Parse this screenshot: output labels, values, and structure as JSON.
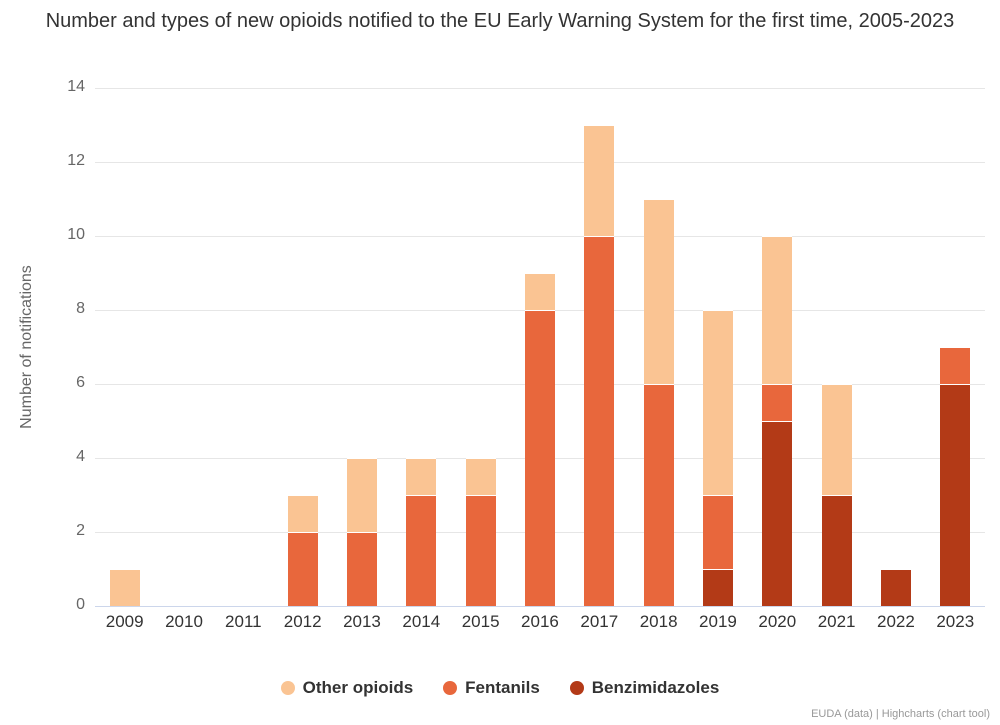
{
  "header": {
    "title": "Number and types of new opioids notified to the EU Early Warning System for the first time, 2005-2023"
  },
  "chart_data": {
    "type": "bar",
    "stacking": "normal",
    "title": "Number and types of new opioids notified to the EU Early Warning System for the first time, 2005-2023",
    "categories": [
      "2009",
      "2010",
      "2011",
      "2012",
      "2013",
      "2014",
      "2015",
      "2016",
      "2017",
      "2018",
      "2019",
      "2020",
      "2021",
      "2022",
      "2023"
    ],
    "series": [
      {
        "name": "Other opioids",
        "color": "#FAC493",
        "values": [
          1,
          0,
          0,
          1,
          2,
          1,
          1,
          1,
          3,
          5,
          5,
          4,
          3,
          0,
          0
        ]
      },
      {
        "name": "Fentanils",
        "color": "#E8673C",
        "values": [
          0,
          0,
          0,
          2,
          2,
          3,
          3,
          8,
          10,
          6,
          2,
          1,
          0,
          0,
          1
        ]
      },
      {
        "name": "Benzimidazoles",
        "color": "#B33A17",
        "values": [
          0,
          0,
          0,
          0,
          0,
          0,
          0,
          0,
          0,
          0,
          1,
          5,
          3,
          1,
          6
        ]
      }
    ],
    "stack_order_bottom_to_top": [
      "Benzimidazoles",
      "Fentanils",
      "Other opioids"
    ],
    "totals": [
      1,
      0,
      0,
      3,
      4,
      4,
      4,
      9,
      13,
      11,
      8,
      10,
      6,
      1,
      7
    ],
    "xlabel": "",
    "ylabel": "Number of notifications",
    "ylim": [
      0,
      14
    ],
    "yticks": [
      0,
      2,
      4,
      6,
      8,
      10,
      12,
      14
    ],
    "grid": true,
    "legend_position": "bottom"
  },
  "y_axis": {
    "title": "Number of notifications"
  },
  "legend": {
    "items": [
      {
        "label": "Other opioids",
        "color": "#FAC493"
      },
      {
        "label": "Fentanils",
        "color": "#E8673C"
      },
      {
        "label": "Benzimidazoles",
        "color": "#B33A17"
      }
    ]
  },
  "credits": {
    "text": "EUDA (data) | Highcharts (chart tool)"
  },
  "colors": {
    "axis_line": "#ccd6eb",
    "gridline": "#e6e6e6",
    "title_text": "#333333",
    "tick_text": "#666666"
  }
}
